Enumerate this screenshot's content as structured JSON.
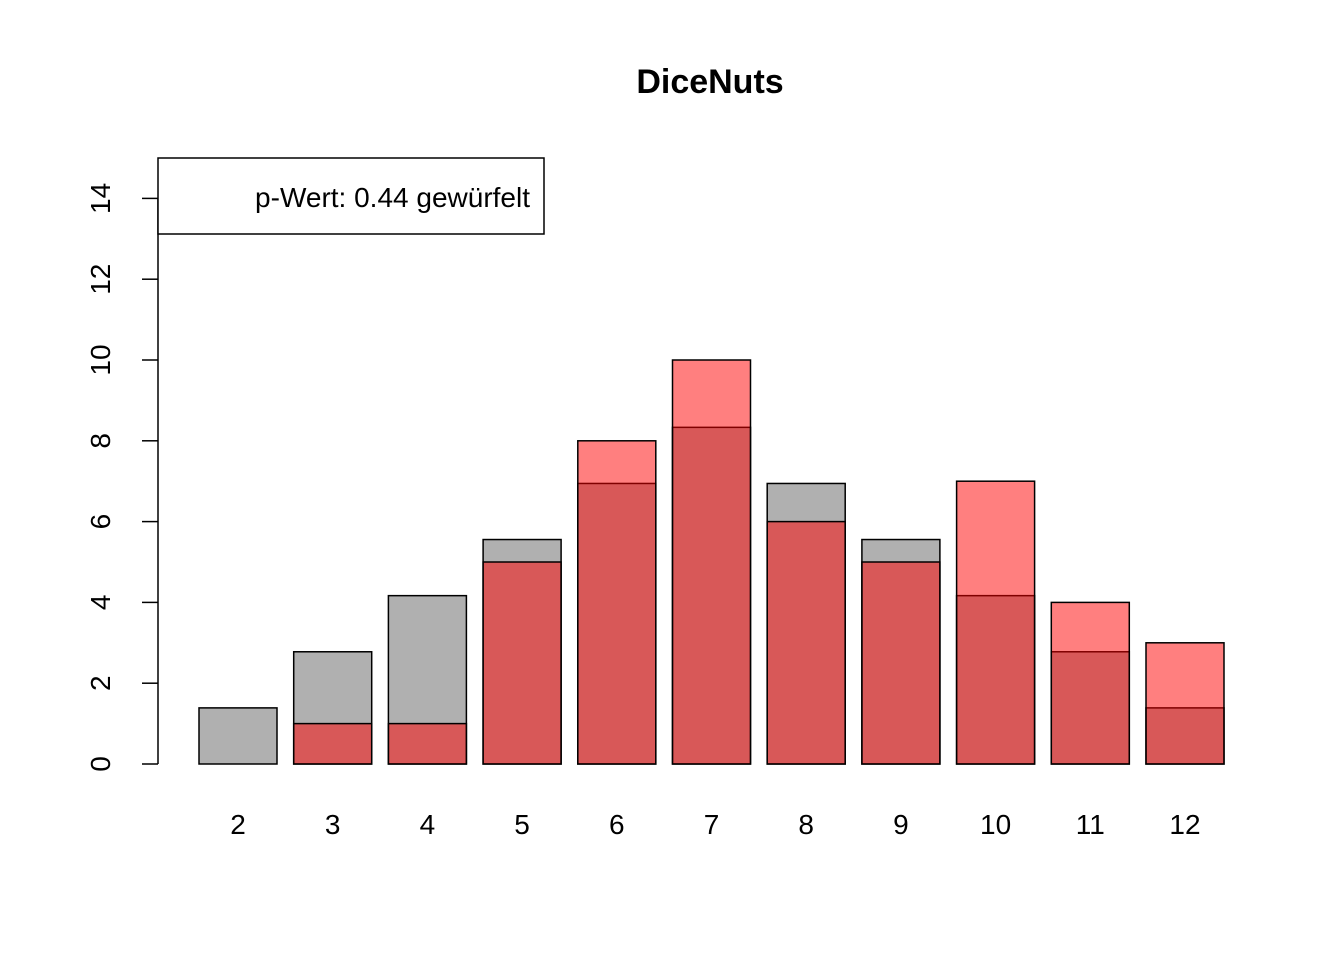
{
  "chart_data": {
    "type": "bar",
    "title": "DiceNuts",
    "xlabel": "",
    "ylabel": "",
    "categories": [
      "2",
      "3",
      "4",
      "5",
      "6",
      "7",
      "8",
      "9",
      "10",
      "11",
      "12"
    ],
    "series": [
      {
        "values": [
          1.389,
          2.778,
          4.167,
          5.556,
          6.944,
          8.333,
          6.944,
          5.556,
          4.167,
          2.778,
          1.389
        ],
        "color": "#b0b0b0"
      },
      {
        "values": [
          0,
          1,
          1,
          5,
          8,
          10,
          6,
          5,
          7,
          4,
          3
        ],
        "color": "#ff0000",
        "opacity": 0.5
      }
    ],
    "ylim": [
      0,
      15
    ],
    "yticks": [
      "0",
      "2",
      "4",
      "6",
      "8",
      "10",
      "12",
      "14"
    ],
    "legend": {
      "text": "p-Wert: 0.44 gewürfelt",
      "position": "top-left"
    },
    "grid": false
  }
}
